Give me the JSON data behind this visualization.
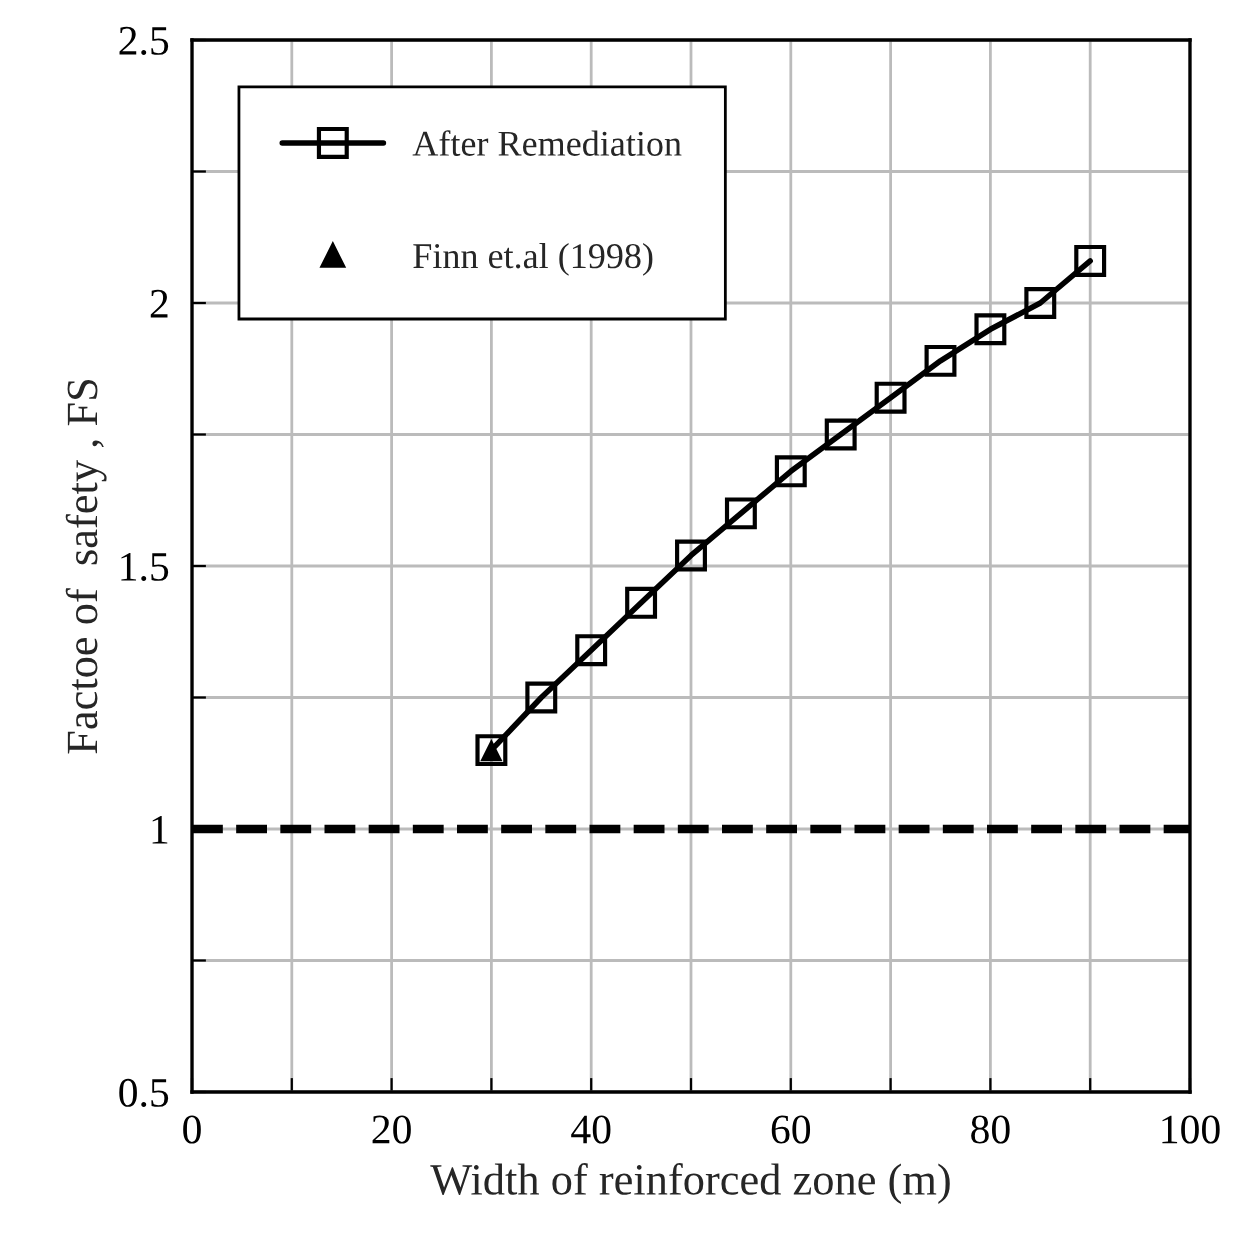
{
  "chart_data": {
    "type": "line",
    "xlabel": "Width of reinforced zone (m)",
    "ylabel": "Factoe of  safety , FS",
    "series": [
      {
        "name": "After Remediation",
        "color": "#000000",
        "marker": "square",
        "x": [
          30,
          35,
          40,
          45,
          50,
          55,
          60,
          65,
          70,
          75,
          80,
          85,
          90
        ],
        "values": [
          1.15,
          1.25,
          1.34,
          1.43,
          1.52,
          1.6,
          1.68,
          1.75,
          1.82,
          1.89,
          1.95,
          2.0,
          2.08
        ]
      },
      {
        "name": "Finn et.al (1998)",
        "type": "scatter",
        "color": "#000000",
        "marker": "triangle",
        "x": [
          30
        ],
        "values": [
          1.15
        ]
      }
    ],
    "xlim": [
      0,
      100
    ],
    "xticks": [
      0,
      {
        "value": 10,
        "label": null
      },
      20,
      {
        "value": 30,
        "label": null
      },
      40,
      {
        "value": 50,
        "label": null
      },
      60,
      {
        "value": 70,
        "label": null
      },
      80,
      {
        "value": 90,
        "label": null
      },
      100
    ],
    "ylim": [
      0.5,
      2.5
    ],
    "yticks": [
      0.5,
      {
        "value": 0.75,
        "label": null
      },
      1,
      {
        "value": 1.25,
        "label": null
      },
      1.5,
      {
        "value": 1.75,
        "label": null
      },
      2,
      {
        "value": 2.25,
        "label": null
      },
      2.5
    ],
    "ref_lines": [
      {
        "axis": "y",
        "value": 1,
        "label": null,
        "color": "#000000",
        "line_style": "dashed"
      }
    ],
    "grid": true,
    "legend": "top left",
    "line_style": "solid"
  }
}
